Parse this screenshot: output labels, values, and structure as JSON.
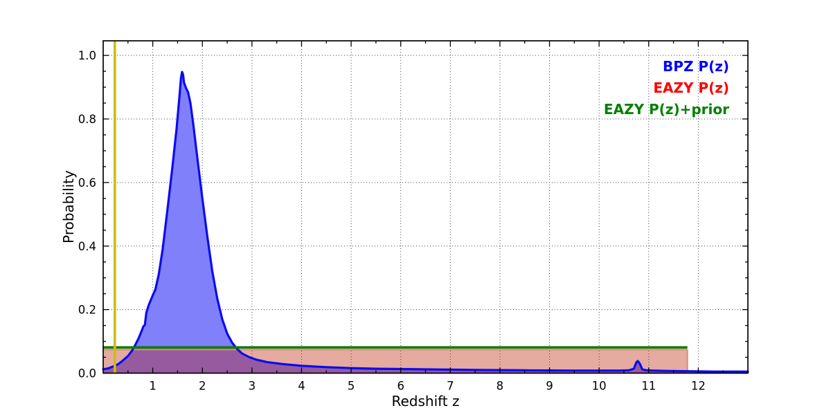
{
  "chart_data": {
    "type": "line",
    "title": "",
    "xlabel": "Redshift z",
    "ylabel": "Probability",
    "xlim": [
      0,
      13
    ],
    "ylim": [
      0,
      1.046
    ],
    "grid": "dotted at major ticks, both axes",
    "x_major_ticks": [
      1,
      2,
      3,
      4,
      5,
      6,
      7,
      8,
      9,
      10,
      11,
      12
    ],
    "x_tick_labels": [
      "1",
      "2",
      "3",
      "4",
      "5",
      "6",
      "7",
      "8",
      "9",
      "10",
      "11",
      "12"
    ],
    "x_minor_step": 0.5,
    "y_major_ticks": [
      0.0,
      0.2,
      0.4,
      0.6,
      0.8,
      1.0
    ],
    "y_tick_labels": [
      "0.0",
      "0.2",
      "0.4",
      "0.6",
      "0.8",
      "1.0"
    ],
    "y_minor_step": 0.05,
    "legend": {
      "position": "upper right",
      "entries": [
        {
          "label": "BPZ P(z)",
          "color": "#0000ff"
        },
        {
          "label": "EAZY P(z)",
          "color": "#ff0000"
        },
        {
          "label": "EAZY P(z)+prior",
          "color": "#008000"
        }
      ]
    },
    "series": [
      {
        "name": "BPZ P(z)",
        "style": "filled curve",
        "line_color": "#0b0bf2",
        "fill_color": "#8080fa",
        "line_width": 3.2,
        "points": [
          [
            0.0,
            0.012
          ],
          [
            0.1,
            0.015
          ],
          [
            0.2,
            0.021
          ],
          [
            0.3,
            0.028
          ],
          [
            0.4,
            0.04
          ],
          [
            0.5,
            0.054
          ],
          [
            0.58,
            0.07
          ],
          [
            0.65,
            0.09
          ],
          [
            0.72,
            0.112
          ],
          [
            0.78,
            0.135
          ],
          [
            0.81,
            0.147
          ],
          [
            0.84,
            0.152
          ],
          [
            0.87,
            0.19
          ],
          [
            0.92,
            0.215
          ],
          [
            1.0,
            0.245
          ],
          [
            1.05,
            0.262
          ],
          [
            1.12,
            0.31
          ],
          [
            1.2,
            0.39
          ],
          [
            1.3,
            0.52
          ],
          [
            1.4,
            0.655
          ],
          [
            1.48,
            0.77
          ],
          [
            1.54,
            0.875
          ],
          [
            1.57,
            0.93
          ],
          [
            1.59,
            0.948
          ],
          [
            1.61,
            0.94
          ],
          [
            1.63,
            0.915
          ],
          [
            1.67,
            0.897
          ],
          [
            1.71,
            0.885
          ],
          [
            1.76,
            0.85
          ],
          [
            1.82,
            0.78
          ],
          [
            1.9,
            0.675
          ],
          [
            2.0,
            0.55
          ],
          [
            2.1,
            0.43
          ],
          [
            2.2,
            0.32
          ],
          [
            2.3,
            0.235
          ],
          [
            2.4,
            0.17
          ],
          [
            2.5,
            0.125
          ],
          [
            2.6,
            0.096
          ],
          [
            2.7,
            0.076
          ],
          [
            2.8,
            0.062
          ],
          [
            2.95,
            0.05
          ],
          [
            3.1,
            0.042
          ],
          [
            3.3,
            0.035
          ],
          [
            3.6,
            0.029
          ],
          [
            4.0,
            0.023
          ],
          [
            4.5,
            0.019
          ],
          [
            5.0,
            0.016
          ],
          [
            5.5,
            0.014
          ],
          [
            6.0,
            0.013
          ],
          [
            6.5,
            0.012
          ],
          [
            7.0,
            0.011
          ],
          [
            7.5,
            0.01
          ],
          [
            8.0,
            0.0095
          ],
          [
            8.5,
            0.009
          ],
          [
            9.0,
            0.0085
          ],
          [
            9.5,
            0.008
          ],
          [
            10.0,
            0.008
          ],
          [
            10.4,
            0.008
          ],
          [
            10.6,
            0.009
          ],
          [
            10.7,
            0.014
          ],
          [
            10.75,
            0.034
          ],
          [
            10.78,
            0.038
          ],
          [
            10.82,
            0.03
          ],
          [
            10.87,
            0.012
          ],
          [
            10.95,
            0.009
          ],
          [
            11.1,
            0.008
          ],
          [
            11.4,
            0.007
          ],
          [
            11.8,
            0.006
          ],
          [
            12.3,
            0.005
          ],
          [
            13.0,
            0.005
          ]
        ]
      },
      {
        "name": "EAZY P(z)",
        "style": "filled flat box",
        "value": 0.074,
        "x_range": [
          0,
          11.78
        ],
        "fill_color_over_white": "#e7ab9f",
        "fill_overlay_rgba": [
          185,
          28,
          0,
          0.37
        ],
        "overlap_color_over_bpz_fill": "#95619c",
        "edge_color": "#d98874",
        "edge_width": 2
      },
      {
        "name": "EAZY P(z)+prior",
        "style": "horizontal line",
        "value": 0.081,
        "x_range": [
          0,
          11.78
        ],
        "color": "#117a04",
        "line_width": 3.6
      },
      {
        "name": "vertical marker",
        "style": "vertical line",
        "value": 0.235,
        "color": "#c9bd17",
        "line_width": 3.6
      }
    ]
  }
}
